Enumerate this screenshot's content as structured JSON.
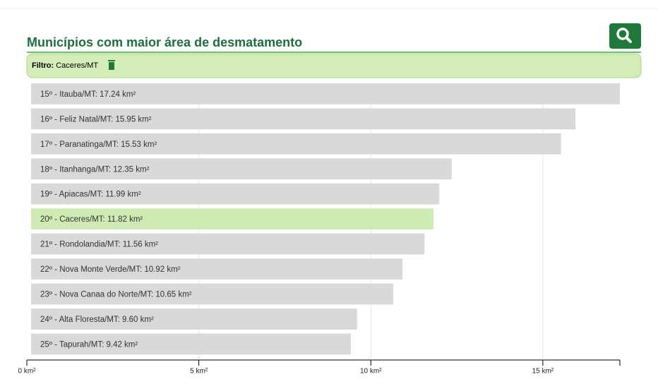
{
  "chart_data": {
    "type": "barh",
    "title": "Municípios com maior área de desmatamento",
    "filter_label": "Filtro:",
    "filter_value": "Caceres/MT",
    "categories": [
      "15º - Itauba/MT: 17.24 km²",
      "16º - Feliz Natal/MT: 15.95 km²",
      "17º - Paranatinga/MT: 15.53 km²",
      "18º - Itanhanga/MT: 12.35 km²",
      "19º - Apiacas/MT: 11.99 km²",
      "20º - Caceres/MT: 11.82 km²",
      "21º - Rondolandia/MT: 11.56 km²",
      "22º - Nova Monte Verde/MT: 10.92 km²",
      "23º - Nova Canaa do Norte/MT: 10.65 km²",
      "24º - Alta Floresta/MT: 9.60 km²",
      "25º - Tapurah/MT: 9.42 km²"
    ],
    "values": [
      17.24,
      15.95,
      15.53,
      12.35,
      11.99,
      11.82,
      11.56,
      10.92,
      10.65,
      9.6,
      9.42
    ],
    "colors": [
      "#d9d9d9",
      "#d9d9d9",
      "#d9d9d9",
      "#d9d9d9",
      "#d9d9d9",
      "#cfeab3",
      "#d9d9d9",
      "#d9d9d9",
      "#d9d9d9",
      "#d9d9d9",
      "#d9d9d9"
    ],
    "xlim": [
      0,
      17.24
    ],
    "xticks": [
      {
        "value": 0,
        "label": "0 km²"
      },
      {
        "value": 5,
        "label": "5 km²"
      },
      {
        "value": 10,
        "label": "10 km²"
      },
      {
        "value": 15,
        "label": "15 km²"
      }
    ],
    "grid": true
  }
}
